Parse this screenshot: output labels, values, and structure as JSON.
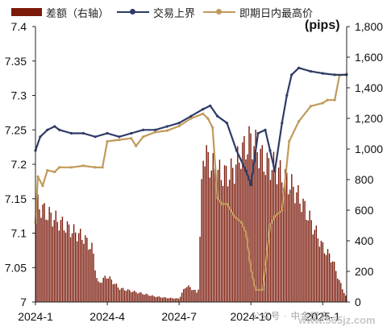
{
  "legend": {
    "bars_label": "差额（右轴）",
    "series1_label": "交易上界",
    "series2_label": "即期日内最高价"
  },
  "unit_label": "(pips)",
  "watermark": "公众号 · 中金研究",
  "watermark_site": "www.565jz.com",
  "colors": {
    "bars": "#7b1a0a",
    "upper_bound": "#2f3b66",
    "spot_high": "#c19a5b",
    "axis": "#222222"
  },
  "chart_data": {
    "type": "bar+line",
    "x_tick_labels": [
      "2024-1",
      "2024-4",
      "2024-7",
      "2024-10",
      "2025-1"
    ],
    "y_left": {
      "min": 7.0,
      "max": 7.4,
      "ticks": [
        "7",
        "7.05",
        "7.1",
        "7.15",
        "7.2",
        "7.25",
        "7.3",
        "7.35",
        "7.4"
      ]
    },
    "y_right": {
      "min": 0,
      "max": 1800,
      "ticks": [
        "0",
        "200",
        "400",
        "600",
        "800",
        "1,000",
        "1,200",
        "1,400",
        "1,600",
        "1,800"
      ]
    },
    "x_month_range": [
      0,
      13
    ],
    "bars": {
      "name": "差额（右轴）",
      "axis": "right",
      "points": [
        [
          0.0,
          720
        ],
        [
          0.5,
          640
        ],
        [
          1.0,
          580
        ],
        [
          1.5,
          520
        ],
        [
          2.0,
          470
        ],
        [
          2.4,
          380
        ],
        [
          2.6,
          130
        ],
        [
          3.0,
          190
        ],
        [
          3.5,
          100
        ],
        [
          4.0,
          80
        ],
        [
          4.5,
          60
        ],
        [
          5.0,
          40
        ],
        [
          5.5,
          30
        ],
        [
          6.0,
          25
        ],
        [
          6.3,
          120
        ],
        [
          6.6,
          90
        ],
        [
          6.8,
          60
        ],
        [
          7.0,
          1100
        ],
        [
          7.3,
          1000
        ],
        [
          7.6,
          940
        ],
        [
          8.0,
          920
        ],
        [
          8.3,
          960
        ],
        [
          8.6,
          1080
        ],
        [
          9.0,
          1180
        ],
        [
          9.3,
          1100
        ],
        [
          9.6,
          1000
        ],
        [
          10.0,
          980
        ],
        [
          10.4,
          900
        ],
        [
          10.8,
          820
        ],
        [
          11.2,
          700
        ],
        [
          11.6,
          550
        ],
        [
          12.0,
          400
        ],
        [
          12.4,
          310
        ],
        [
          12.7,
          150
        ],
        [
          13.0,
          30
        ]
      ]
    },
    "upper_bound": {
      "name": "交易上界",
      "axis": "left",
      "points": [
        [
          0.0,
          7.22
        ],
        [
          0.2,
          7.24
        ],
        [
          0.5,
          7.25
        ],
        [
          0.8,
          7.255
        ],
        [
          1.0,
          7.25
        ],
        [
          1.5,
          7.245
        ],
        [
          2.0,
          7.245
        ],
        [
          2.5,
          7.24
        ],
        [
          3.0,
          7.245
        ],
        [
          3.5,
          7.24
        ],
        [
          4.0,
          7.245
        ],
        [
          4.5,
          7.25
        ],
        [
          5.0,
          7.25
        ],
        [
          5.5,
          7.255
        ],
        [
          6.0,
          7.26
        ],
        [
          6.5,
          7.27
        ],
        [
          7.0,
          7.28
        ],
        [
          7.3,
          7.285
        ],
        [
          7.6,
          7.27
        ],
        [
          8.0,
          7.26
        ],
        [
          8.4,
          7.22
        ],
        [
          8.8,
          7.19
        ],
        [
          9.0,
          7.17
        ],
        [
          9.3,
          7.245
        ],
        [
          9.6,
          7.25
        ],
        [
          9.8,
          7.22
        ],
        [
          10.0,
          7.19
        ],
        [
          10.3,
          7.26
        ],
        [
          10.5,
          7.3
        ],
        [
          10.7,
          7.33
        ],
        [
          11.0,
          7.34
        ],
        [
          11.5,
          7.335
        ],
        [
          12.0,
          7.332
        ],
        [
          12.5,
          7.33
        ],
        [
          13.0,
          7.33
        ]
      ]
    },
    "spot_high": {
      "name": "即期日内最高价",
      "axis": "right",
      "points": [
        [
          0.0,
          520
        ],
        [
          0.1,
          820
        ],
        [
          0.3,
          760
        ],
        [
          0.5,
          860
        ],
        [
          0.8,
          850
        ],
        [
          1.0,
          880
        ],
        [
          1.5,
          880
        ],
        [
          2.0,
          890
        ],
        [
          2.5,
          880
        ],
        [
          2.8,
          880
        ],
        [
          3.0,
          1050
        ],
        [
          3.5,
          1060
        ],
        [
          4.0,
          1070
        ],
        [
          4.2,
          1020
        ],
        [
          4.5,
          1080
        ],
        [
          5.0,
          1110
        ],
        [
          5.5,
          1120
        ],
        [
          6.0,
          1150
        ],
        [
          6.5,
          1200
        ],
        [
          7.0,
          1230
        ],
        [
          7.2,
          1200
        ],
        [
          7.4,
          1140
        ],
        [
          7.6,
          680
        ],
        [
          7.8,
          640
        ],
        [
          8.0,
          640
        ],
        [
          8.3,
          560
        ],
        [
          8.6,
          520
        ],
        [
          8.8,
          450
        ],
        [
          9.0,
          220
        ],
        [
          9.2,
          80
        ],
        [
          9.5,
          80
        ],
        [
          9.8,
          500
        ],
        [
          10.0,
          560
        ],
        [
          10.3,
          600
        ],
        [
          10.6,
          1050
        ],
        [
          11.0,
          1180
        ],
        [
          11.5,
          1280
        ],
        [
          12.0,
          1300
        ],
        [
          12.2,
          1320
        ],
        [
          12.5,
          1320
        ],
        [
          12.7,
          1480
        ],
        [
          13.0,
          1490
        ]
      ]
    }
  }
}
